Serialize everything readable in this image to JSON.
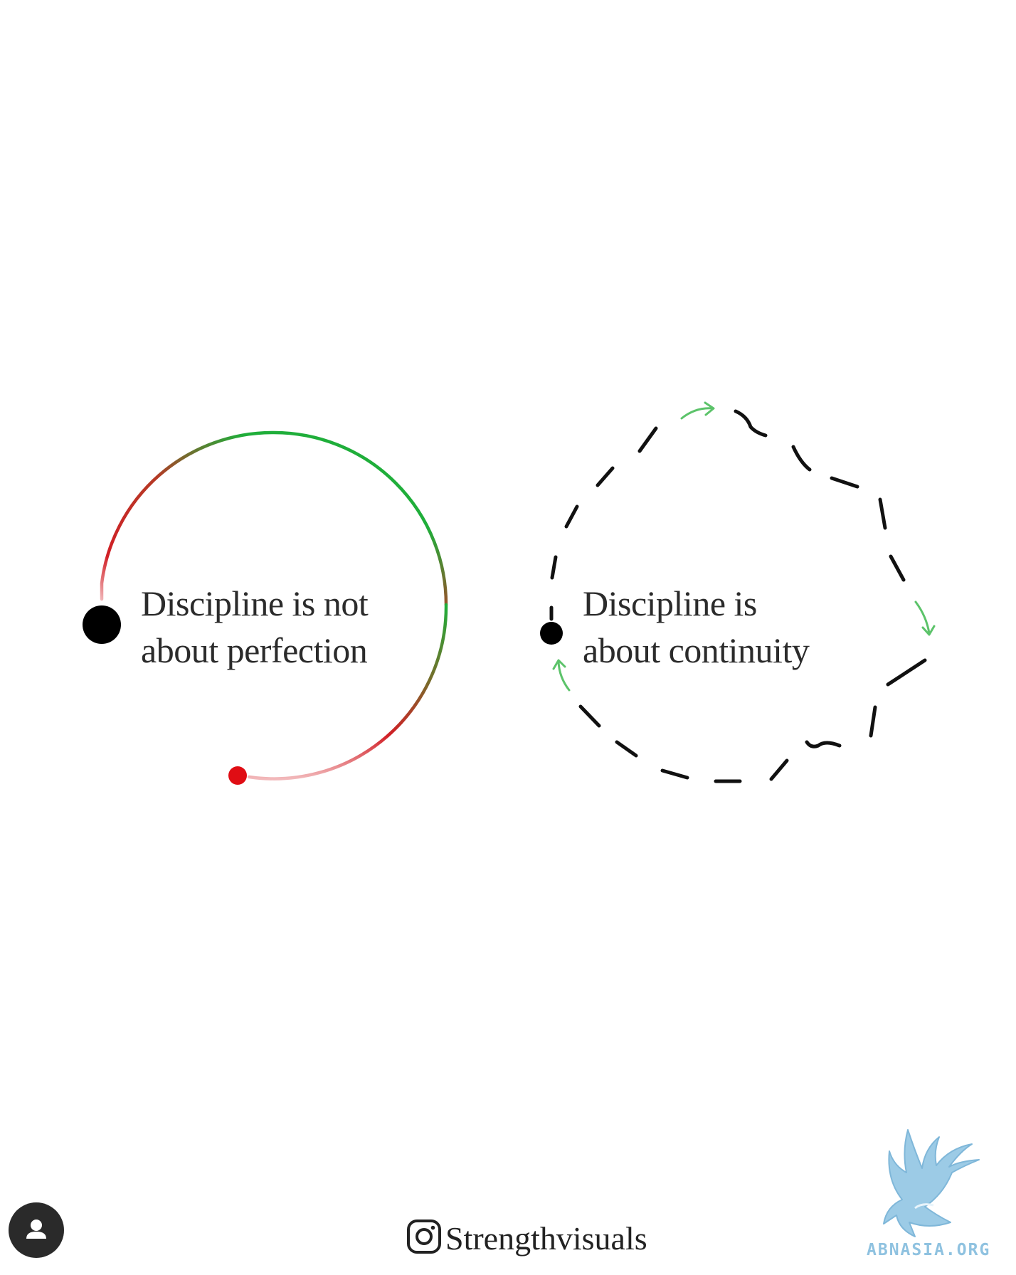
{
  "left_caption": {
    "line1": "Discipline is not",
    "line2": "about perfection"
  },
  "right_caption": {
    "line1": "Discipline is",
    "line2": "about continuity"
  },
  "footer": {
    "handle": "Strengthvisuals",
    "watermark": "ABNASIA.ORG"
  },
  "icons": {
    "instagram": "instagram-icon",
    "avatar": "user-avatar-icon",
    "logo": "dragon-logo"
  },
  "colors": {
    "background": "#ffffff",
    "text": "#2b2b2b",
    "arc_red": "#d11f26",
    "arc_green": "#1fae3a",
    "arrow_green": "#5cc36a",
    "dash": "#111111",
    "watermark": "#8fc2e0"
  }
}
